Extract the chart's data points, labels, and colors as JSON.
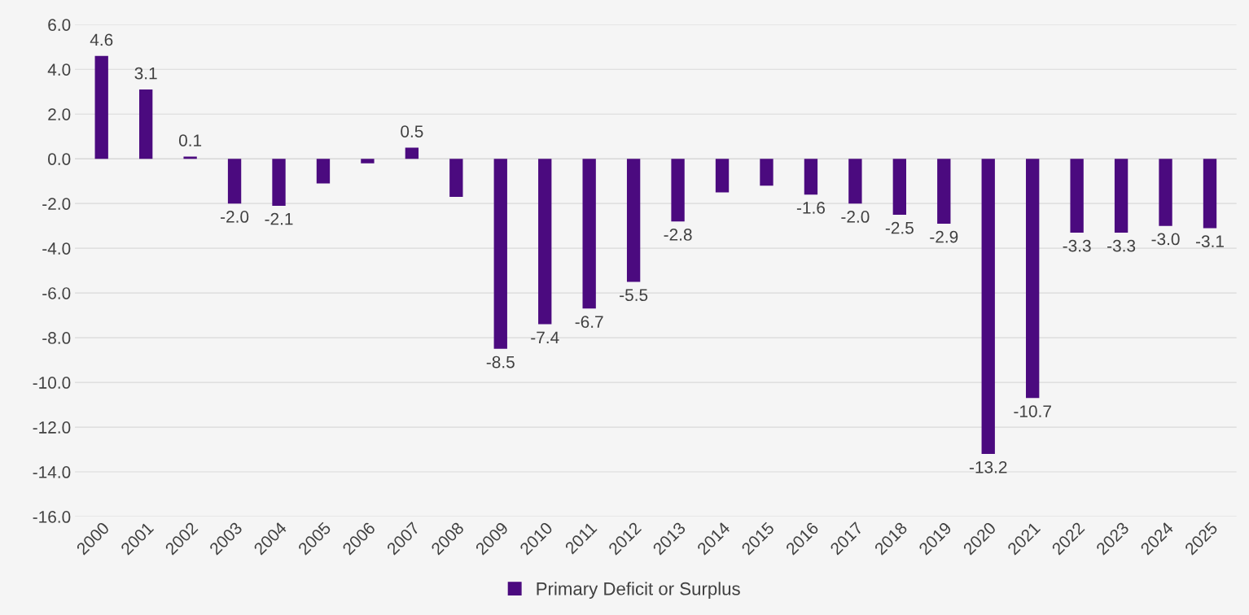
{
  "chart_data": {
    "type": "bar",
    "categories": [
      "2000",
      "2001",
      "2002",
      "2003",
      "2004",
      "2005",
      "2006",
      "2007",
      "2008",
      "2009",
      "2010",
      "2011",
      "2012",
      "2013",
      "2014",
      "2015",
      "2016",
      "2017",
      "2018",
      "2019",
      "2020",
      "2021",
      "2022",
      "2023",
      "2024",
      "2025"
    ],
    "series": [
      {
        "name": "Primary Deficit or Surplus",
        "color": "#4b0a7f",
        "values": [
          4.6,
          3.1,
          0.1,
          -2.0,
          -2.1,
          -1.1,
          -0.2,
          0.5,
          -1.7,
          -8.5,
          -7.4,
          -6.7,
          -5.5,
          -2.8,
          -1.5,
          -1.2,
          -1.6,
          -2.0,
          -2.5,
          -2.9,
          -13.2,
          -10.7,
          -3.3,
          -3.3,
          -3.0,
          -3.1
        ],
        "value_labels": [
          "4.6",
          "3.1",
          "0.1",
          "-2.0",
          "-2.1",
          null,
          null,
          "0.5",
          null,
          "-8.5",
          "-7.4",
          "-6.7",
          "-5.5",
          "-2.8",
          null,
          null,
          "-1.6",
          "-2.0",
          "-2.5",
          "-2.9",
          "-13.2",
          "-10.7",
          "-3.3",
          "-3.3",
          "-3.0",
          "-3.1"
        ]
      }
    ],
    "ylim": [
      -16,
      6
    ],
    "yticks": [
      {
        "value": 6,
        "label": "6.0"
      },
      {
        "value": 4,
        "label": "4.0"
      },
      {
        "value": 2,
        "label": "2.0"
      },
      {
        "value": 0,
        "label": "0.0"
      },
      {
        "value": -2,
        "label": "-2.0"
      },
      {
        "value": -4,
        "label": "-4.0"
      },
      {
        "value": -6,
        "label": "-6.0"
      },
      {
        "value": -8,
        "label": "-8.0"
      },
      {
        "value": -10,
        "label": "-10.0"
      },
      {
        "value": -12,
        "label": "-12.0"
      },
      {
        "value": -14,
        "label": "-14.0"
      },
      {
        "value": -16,
        "label": "-16.0"
      }
    ],
    "grid": "y",
    "legend": "bottom"
  }
}
